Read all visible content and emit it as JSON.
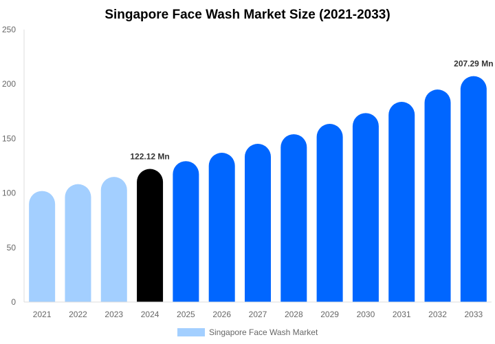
{
  "chart_data": {
    "type": "bar",
    "title": "Singapore Face Wash Market Size (2021-2033)",
    "xlabel": "",
    "ylabel": "",
    "ylim": [
      0,
      250
    ],
    "yticks": [
      "0",
      "50",
      "100",
      "150",
      "200",
      "250"
    ],
    "grid": false,
    "legend_position": "bottom",
    "categories": [
      "2021",
      "2022",
      "2023",
      "2024",
      "2025",
      "2026",
      "2027",
      "2028",
      "2029",
      "2030",
      "2031",
      "2032",
      "2033"
    ],
    "series": [
      {
        "name": "Singapore Face Wash Market",
        "values": [
          101.9,
          108.2,
          114.8,
          122.12,
          129.3,
          137.0,
          145.2,
          154.0,
          163.5,
          173.4,
          183.7,
          195.0,
          207.29
        ]
      }
    ],
    "bar_colors": [
      "#a3cfff",
      "#a3cfff",
      "#a3cfff",
      "#000000",
      "#0066ff",
      "#0066ff",
      "#0066ff",
      "#0066ff",
      "#0066ff",
      "#0066ff",
      "#0066ff",
      "#0066ff",
      "#0066ff"
    ],
    "legend_color": "#a3cfff",
    "data_labels": [
      {
        "index": 3,
        "text": "122.12 Mn"
      },
      {
        "index": 12,
        "text": "207.29 Mn"
      }
    ]
  }
}
